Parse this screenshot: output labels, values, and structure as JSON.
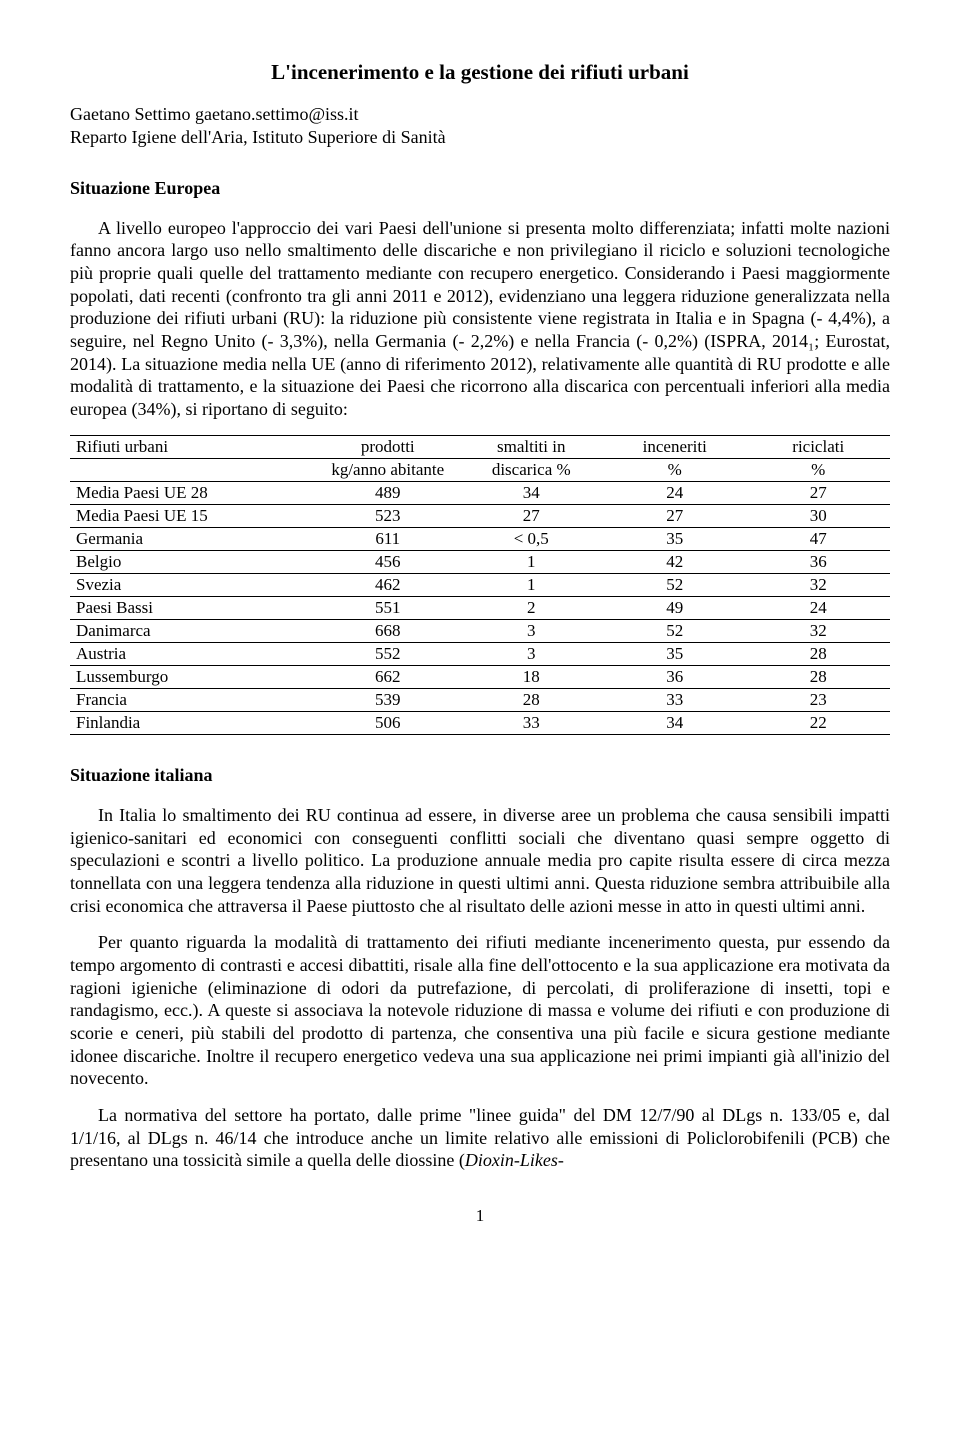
{
  "title": "L'incenerimento e la gestione dei rifiuti urbani",
  "author": {
    "name_line": "Gaetano Settimo gaetano.settimo@iss.it",
    "affiliation": "Reparto Igiene dell'Aria, Istituto Superiore di Sanità"
  },
  "section1": {
    "heading": "Situazione Europea",
    "p1": "A livello europeo l'approccio dei vari Paesi dell'unione si presenta molto differenziata; infatti molte nazioni fanno ancora largo uso nello smaltimento delle discariche e non privilegiano il riciclo e soluzioni tecnologiche più proprie quali quelle del trattamento mediante con recupero energetico. Considerando i Paesi maggiormente popolati, dati recenti (confronto tra gli anni 2011 e 2012), evidenziano una leggera riduzione generalizzata nella produzione dei rifiuti urbani (RU): la riduzione più consistente viene registrata in Italia e in Spagna (- 4,4%), a seguire, nel Regno Unito (- 3,3%), nella Germania (- 2,2%) e nella Francia (- 0,2%) (ISPRA, 2014₁; Eurostat, 2014).  La situazione media nella UE (anno di riferimento 2012), relativamente alle quantità di RU prodotte e alle modalità di trattamento, e la situazione dei Paesi che ricorrono alla discarica con percentuali inferiori alla media europea (34%), si riportano di seguito:"
  },
  "table": {
    "columns": {
      "c1": "Rifiuti urbani",
      "c2": "prodotti",
      "c2sub": "kg/anno abitante",
      "c3": "smaltiti in",
      "c3sub": "discarica %",
      "c4": "inceneriti",
      "c4sub": "%",
      "c5": "riciclati",
      "c5sub": "%"
    },
    "col_widths": [
      "30%",
      "17.5%",
      "17.5%",
      "17.5%",
      "17.5%"
    ],
    "rows": [
      {
        "c1": "Media Paesi UE 28",
        "c2": "489",
        "c3": "34",
        "c4": "24",
        "c5": "27"
      },
      {
        "c1": "Media Paesi UE 15",
        "c2": "523",
        "c3": "27",
        "c4": "27",
        "c5": "30"
      },
      {
        "c1": "Germania",
        "c2": "611",
        "c3": "< 0,5",
        "c4": "35",
        "c5": "47"
      },
      {
        "c1": "Belgio",
        "c2": "456",
        "c3": "1",
        "c4": "42",
        "c5": "36"
      },
      {
        "c1": "Svezia",
        "c2": "462",
        "c3": "1",
        "c4": "52",
        "c5": "32"
      },
      {
        "c1": "Paesi Bassi",
        "c2": "551",
        "c3": "2",
        "c4": "49",
        "c5": "24"
      },
      {
        "c1": "Danimarca",
        "c2": "668",
        "c3": "3",
        "c4": "52",
        "c5": "32"
      },
      {
        "c1": "Austria",
        "c2": "552",
        "c3": "3",
        "c4": "35",
        "c5": "28"
      },
      {
        "c1": "Lussemburgo",
        "c2": "662",
        "c3": "18",
        "c4": "36",
        "c5": "28"
      },
      {
        "c1": "Francia",
        "c2": "539",
        "c3": "28",
        "c4": "33",
        "c5": "23"
      },
      {
        "c1": "Finlandia",
        "c2": "506",
        "c3": "33",
        "c4": "34",
        "c5": "22"
      }
    ]
  },
  "section2": {
    "heading": "Situazione italiana",
    "p1": "In Italia lo smaltimento dei RU continua ad essere, in diverse aree un problema che causa sensibili impatti igienico-sanitari ed economici con conseguenti conflitti sociali che diventano quasi sempre oggetto di speculazioni e scontri a livello politico.  La produzione annuale media pro capite risulta essere di circa mezza tonnellata con una leggera tendenza alla riduzione in questi ultimi anni. Questa riduzione sembra attribuibile alla crisi economica che attraversa il Paese piuttosto che al risultato delle azioni messe in atto in questi ultimi anni.",
    "p2": "Per quanto riguarda la modalità di trattamento dei rifiuti mediante incenerimento questa, pur essendo da tempo argomento di contrasti e accesi dibattiti, risale alla fine dell'ottocento e la sua applicazione era motivata da ragioni igieniche (eliminazione di odori da putrefazione, di percolati, di proliferazione di insetti, topi e randagismo, ecc.).  A queste si associava la notevole riduzione di massa e volume dei rifiuti e con produzione di scorie e ceneri, più stabili del prodotto di partenza, che consentiva una più facile e sicura gestione mediante idonee discariche.  Inoltre il recupero energetico vedeva una sua applicazione nei primi impianti già all'inizio del novecento.",
    "p3_a": "La normativa del settore ha portato, dalle prime \"linee guida\" del DM 12/7/90 al DLgs n. 133/05 e, dal 1/1/16, al DLgs n. 46/14 che introduce anche un limite relativo alle emissioni di Policlorobifenili (PCB) che presentano una tossicità simile a quella delle diossine (",
    "p3_b": "Dioxin-Likes-"
  },
  "page_number": "1",
  "styles": {
    "background_color": "#ffffff",
    "text_color": "#000000",
    "border_color": "#000000",
    "title_fontsize": 21,
    "body_fontsize": 18,
    "table_fontsize": 17,
    "font_family": "Times New Roman"
  }
}
